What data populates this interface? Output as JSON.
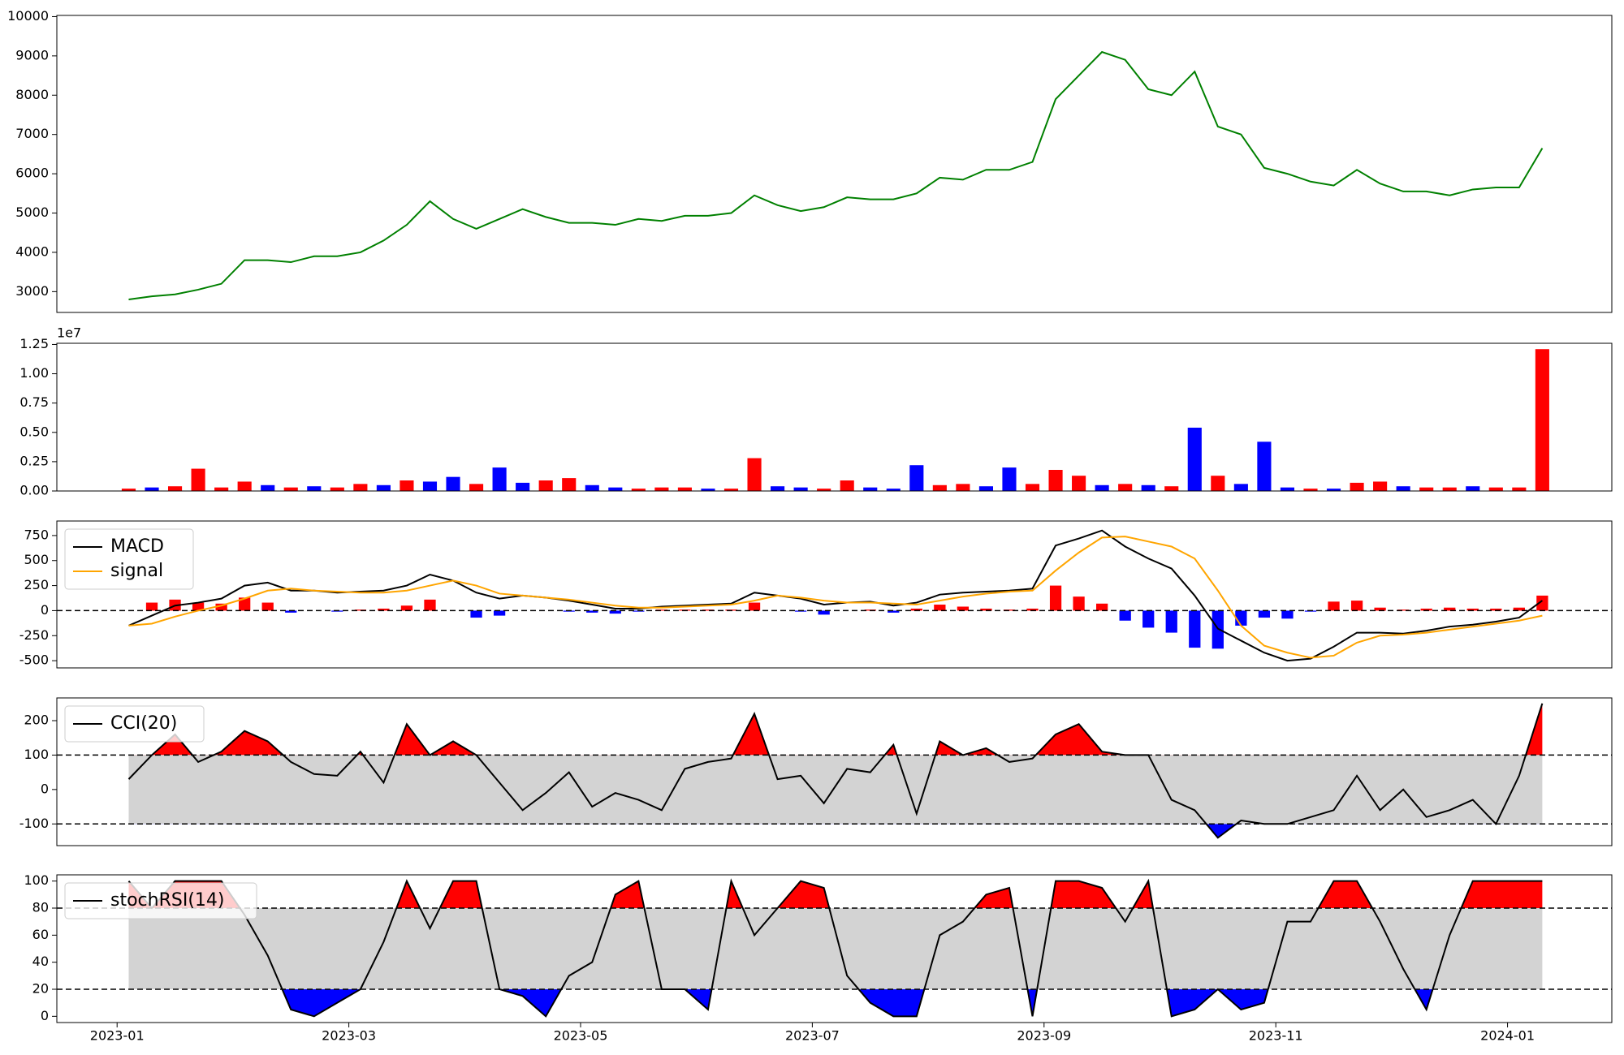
{
  "chart_data": [
    {
      "type": "line",
      "color": "green",
      "x": [
        0.1,
        0.3,
        0.5,
        0.7,
        0.9,
        1.1,
        1.3,
        1.5,
        1.7,
        1.9,
        2.1,
        2.3,
        2.5,
        2.7,
        2.9,
        3.1,
        3.3,
        3.5,
        3.7,
        3.9,
        4.1,
        4.3,
        4.5,
        4.7,
        4.9,
        5.1,
        5.3,
        5.5,
        5.7,
        5.9,
        6.1,
        6.3,
        6.5,
        6.7,
        6.9,
        7.1,
        7.3,
        7.5,
        7.7,
        7.9,
        8.1,
        8.3,
        8.5,
        8.7,
        8.9,
        9.1,
        9.3,
        9.5,
        9.7,
        9.9,
        10.1,
        10.3,
        10.5,
        10.7,
        10.9,
        11.1,
        11.3,
        11.5,
        11.7,
        11.9,
        12.1,
        12.3
      ],
      "values": [
        2800,
        2880,
        2930,
        3050,
        3200,
        3800,
        3800,
        3750,
        3900,
        3900,
        4000,
        4300,
        4700,
        5300,
        4850,
        4600,
        4850,
        5100,
        4900,
        4750,
        4750,
        4700,
        4850,
        4800,
        4930,
        4930,
        5000,
        5450,
        5200,
        5050,
        5150,
        5400,
        5350,
        5350,
        5500,
        5900,
        5850,
        6100,
        6100,
        6300,
        7900,
        8500,
        9100,
        8900,
        8150,
        8000,
        8600,
        7200,
        7000,
        6150,
        6000,
        5800,
        5700,
        6100,
        5750,
        5550,
        5550,
        5450,
        5600,
        5650,
        5650,
        6650
      ],
      "xlim": [
        -0.52,
        12.9
      ],
      "ylim": [
        2470,
        10030
      ],
      "yticks": [
        3000,
        4000,
        5000,
        6000,
        7000,
        8000,
        9000,
        10000
      ]
    },
    {
      "type": "bar",
      "offset_label": "1e7",
      "x": [
        0.1,
        0.3,
        0.5,
        0.7,
        0.9,
        1.1,
        1.3,
        1.5,
        1.7,
        1.9,
        2.1,
        2.3,
        2.5,
        2.7,
        2.9,
        3.1,
        3.3,
        3.5,
        3.7,
        3.9,
        4.1,
        4.3,
        4.5,
        4.7,
        4.9,
        5.1,
        5.3,
        5.5,
        5.7,
        5.9,
        6.1,
        6.3,
        6.5,
        6.7,
        6.9,
        7.1,
        7.3,
        7.5,
        7.7,
        7.9,
        8.1,
        8.3,
        8.5,
        8.7,
        8.9,
        9.1,
        9.3,
        9.5,
        9.7,
        9.9,
        10.1,
        10.3,
        10.5,
        10.7,
        10.9,
        11.1,
        11.3,
        11.5,
        11.7,
        11.9,
        12.1,
        12.3
      ],
      "values": [
        200000,
        300000,
        400000,
        1900000,
        300000,
        800000,
        500000,
        300000,
        400000,
        300000,
        600000,
        500000,
        900000,
        800000,
        1200000,
        600000,
        2000000,
        700000,
        900000,
        1100000,
        500000,
        300000,
        200000,
        300000,
        300000,
        200000,
        200000,
        2800000,
        400000,
        300000,
        200000,
        900000,
        300000,
        200000,
        2200000,
        500000,
        600000,
        400000,
        2000000,
        600000,
        1800000,
        1300000,
        500000,
        600000,
        500000,
        400000,
        5400000,
        1300000,
        600000,
        4200000,
        300000,
        200000,
        200000,
        700000,
        800000,
        400000,
        300000,
        300000,
        400000,
        300000,
        300000,
        12100000
      ],
      "colors": [
        "red",
        "blue",
        "red",
        "red",
        "red",
        "red",
        "blue",
        "red",
        "blue",
        "red",
        "red",
        "blue",
        "red",
        "blue",
        "blue",
        "red",
        "blue",
        "blue",
        "red",
        "red",
        "blue",
        "blue",
        "red",
        "red",
        "red",
        "blue",
        "red",
        "red",
        "blue",
        "blue",
        "red",
        "red",
        "blue",
        "blue",
        "blue",
        "red",
        "red",
        "blue",
        "blue",
        "red",
        "red",
        "red",
        "blue",
        "red",
        "blue",
        "red",
        "blue",
        "red",
        "blue",
        "blue",
        "blue",
        "red",
        "blue",
        "red",
        "red",
        "blue",
        "red",
        "red",
        "blue",
        "red",
        "red",
        "red"
      ],
      "xlim": [
        -0.52,
        12.9
      ],
      "ylim": [
        0,
        12600000
      ],
      "yticks": [
        {
          "value": 0,
          "label": "0.00"
        },
        {
          "value": 2500000,
          "label": "0.25"
        },
        {
          "value": 5000000,
          "label": "0.50"
        },
        {
          "value": 7500000,
          "label": "0.75"
        },
        {
          "value": 10000000,
          "label": "1.00"
        },
        {
          "value": 12500000,
          "label": "1.25"
        }
      ]
    },
    {
      "type": "macd",
      "x": [
        0.1,
        0.3,
        0.5,
        0.7,
        0.9,
        1.1,
        1.3,
        1.5,
        1.7,
        1.9,
        2.1,
        2.3,
        2.5,
        2.7,
        2.9,
        3.1,
        3.3,
        3.5,
        3.7,
        3.9,
        4.1,
        4.3,
        4.5,
        4.7,
        4.9,
        5.1,
        5.3,
        5.5,
        5.7,
        5.9,
        6.1,
        6.3,
        6.5,
        6.7,
        6.9,
        7.1,
        7.3,
        7.5,
        7.7,
        7.9,
        8.1,
        8.3,
        8.5,
        8.7,
        8.9,
        9.1,
        9.3,
        9.5,
        9.7,
        9.9,
        10.1,
        10.3,
        10.5,
        10.7,
        10.9,
        11.1,
        11.3,
        11.5,
        11.7,
        11.9,
        12.1,
        12.3
      ],
      "series": [
        {
          "name": "MACD",
          "color": "black",
          "values": [
            -150,
            -50,
            50,
            80,
            120,
            250,
            280,
            200,
            200,
            180,
            190,
            200,
            250,
            360,
            300,
            180,
            120,
            150,
            130,
            100,
            60,
            20,
            20,
            40,
            50,
            60,
            70,
            180,
            150,
            120,
            60,
            80,
            90,
            50,
            80,
            160,
            180,
            190,
            200,
            220,
            650,
            720,
            800,
            640,
            520,
            420,
            150,
            -180,
            -300,
            -420,
            -500,
            -480,
            -360,
            -220,
            -220,
            -230,
            -200,
            -160,
            -140,
            -110,
            -70,
            100
          ]
        },
        {
          "name": "signal",
          "color": "orange",
          "values": [
            -150,
            -130,
            -60,
            0,
            50,
            120,
            200,
            220,
            200,
            190,
            180,
            180,
            200,
            250,
            300,
            250,
            170,
            150,
            130,
            110,
            80,
            50,
            30,
            30,
            40,
            50,
            60,
            100,
            150,
            130,
            100,
            80,
            80,
            70,
            60,
            100,
            140,
            170,
            190,
            200,
            400,
            580,
            730,
            740,
            690,
            640,
            520,
            200,
            -150,
            -350,
            -420,
            -470,
            -450,
            -320,
            -250,
            -240,
            -220,
            -190,
            -160,
            -130,
            -100,
            -50
          ]
        }
      ],
      "histogram": {
        "up_color": "red",
        "down_color": "blue",
        "values": [
          0,
          80,
          110,
          80,
          70,
          130,
          80,
          -20,
          0,
          -10,
          10,
          20,
          50,
          110,
          0,
          -70,
          -50,
          0,
          0,
          -10,
          -20,
          -30,
          -10,
          10,
          10,
          10,
          10,
          80,
          0,
          -10,
          -40,
          0,
          10,
          -20,
          20,
          60,
          40,
          20,
          10,
          20,
          250,
          140,
          70,
          -100,
          -170,
          -220,
          -370,
          -380,
          -150,
          -70,
          -80,
          -10,
          90,
          100,
          30,
          10,
          20,
          30,
          20,
          20,
          30,
          150
        ]
      },
      "reference_line": 0,
      "xlim": [
        -0.52,
        12.9
      ],
      "ylim": [
        -572,
        895
      ],
      "yticks": [
        -500,
        -250,
        0,
        250,
        500,
        750
      ]
    },
    {
      "type": "oscillator",
      "upper": 100,
      "lower": -100,
      "band_color": "#d3d3d3",
      "above_color": "red",
      "below_color": "blue",
      "x": [
        0.1,
        0.3,
        0.5,
        0.7,
        0.9,
        1.1,
        1.3,
        1.5,
        1.7,
        1.9,
        2.1,
        2.3,
        2.5,
        2.7,
        2.9,
        3.1,
        3.3,
        3.5,
        3.7,
        3.9,
        4.1,
        4.3,
        4.5,
        4.7,
        4.9,
        5.1,
        5.3,
        5.5,
        5.7,
        5.9,
        6.1,
        6.3,
        6.5,
        6.7,
        6.9,
        7.1,
        7.3,
        7.5,
        7.7,
        7.9,
        8.1,
        8.3,
        8.5,
        8.7,
        8.9,
        9.1,
        9.3,
        9.5,
        9.7,
        9.9,
        10.1,
        10.3,
        10.5,
        10.7,
        10.9,
        11.1,
        11.3,
        11.5,
        11.7,
        11.9,
        12.1,
        12.3
      ],
      "series": [
        {
          "name": "CCI(20)",
          "color": "black",
          "values": [
            30,
            100,
            160,
            80,
            110,
            170,
            140,
            80,
            45,
            40,
            110,
            20,
            190,
            100,
            140,
            100,
            20,
            -60,
            -10,
            50,
            -50,
            -10,
            -30,
            -60,
            60,
            80,
            90,
            220,
            30,
            40,
            -40,
            60,
            50,
            130,
            -70,
            140,
            100,
            120,
            80,
            90,
            160,
            190,
            110,
            100,
            100,
            -30,
            -60,
            -140,
            -90,
            -100,
            -100,
            -80,
            -60,
            40,
            -60,
            0,
            -80,
            -60,
            -30,
            -100,
            40,
            250
          ]
        }
      ],
      "xlim": [
        -0.52,
        12.9
      ],
      "ylim": [
        -163,
        266
      ],
      "yticks": [
        -100,
        0,
        100,
        200
      ]
    },
    {
      "type": "oscillator",
      "upper": 80,
      "lower": 20,
      "band_color": "#d3d3d3",
      "above_color": "red",
      "below_color": "blue",
      "x": [
        0.1,
        0.3,
        0.5,
        0.7,
        0.9,
        1.1,
        1.3,
        1.5,
        1.7,
        1.9,
        2.1,
        2.3,
        2.5,
        2.7,
        2.9,
        3.1,
        3.3,
        3.5,
        3.7,
        3.9,
        4.1,
        4.3,
        4.5,
        4.7,
        4.9,
        5.1,
        5.3,
        5.5,
        5.7,
        5.9,
        6.1,
        6.3,
        6.5,
        6.7,
        6.9,
        7.1,
        7.3,
        7.5,
        7.7,
        7.9,
        8.1,
        8.3,
        8.5,
        8.7,
        8.9,
        9.1,
        9.3,
        9.5,
        9.7,
        9.9,
        10.1,
        10.3,
        10.5,
        10.7,
        10.9,
        11.1,
        11.3,
        11.5,
        11.7,
        11.9,
        12.1,
        12.3
      ],
      "series": [
        {
          "name": "stochRSI(14)",
          "color": "black",
          "values": [
            100,
            80,
            100,
            100,
            100,
            75,
            45,
            5,
            0,
            10,
            20,
            55,
            100,
            65,
            100,
            100,
            20,
            15,
            0,
            30,
            40,
            90,
            100,
            20,
            20,
            5,
            100,
            60,
            80,
            100,
            95,
            30,
            10,
            0,
            0,
            60,
            70,
            90,
            95,
            0,
            100,
            100,
            95,
            70,
            100,
            0,
            5,
            20,
            5,
            10,
            70,
            70,
            100,
            100,
            70,
            35,
            5,
            60,
            100,
            100,
            100,
            100
          ]
        }
      ],
      "xlim": [
        -0.52,
        12.9
      ],
      "ylim": [
        -4.6,
        104.6
      ],
      "yticks": [
        0,
        20,
        40,
        60,
        80,
        100
      ],
      "xticks": [
        {
          "value": 0,
          "label": "2023-01"
        },
        {
          "value": 2,
          "label": "2023-03"
        },
        {
          "value": 4,
          "label": "2023-05"
        },
        {
          "value": 6,
          "label": "2023-07"
        },
        {
          "value": 8,
          "label": "2023-09"
        },
        {
          "value": 10,
          "label": "2023-11"
        },
        {
          "value": 12,
          "label": "2024-01"
        }
      ]
    }
  ]
}
